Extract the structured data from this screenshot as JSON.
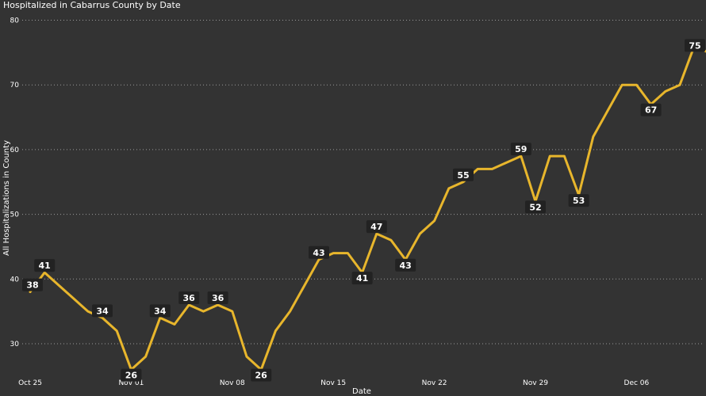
{
  "chart_data": {
    "type": "line",
    "title": "Hospitalized in Cabarrus County by Date",
    "xlabel": "Date",
    "ylabel": "All Hospitalizations in County",
    "ylim": [
      23,
      80
    ],
    "yticks": [
      30,
      40,
      50,
      60,
      70,
      80
    ],
    "grid": true,
    "line_color": "#E8B62C",
    "label_bg": "#222222",
    "x_tick_labels": [
      {
        "date": "2020-10-25",
        "label": "Oct 25"
      },
      {
        "date": "2020-11-01",
        "label": "Nov 01"
      },
      {
        "date": "2020-11-08",
        "label": "Nov 08"
      },
      {
        "date": "2020-11-15",
        "label": "Nov 15"
      },
      {
        "date": "2020-11-22",
        "label": "Nov 22"
      },
      {
        "date": "2020-11-29",
        "label": "Nov 29"
      },
      {
        "date": "2020-12-06",
        "label": "Dec 06"
      }
    ],
    "series": [
      {
        "points": [
          {
            "x": "2020-10-25",
            "y": 38,
            "label": true
          },
          {
            "x": "2020-10-26",
            "y": 41,
            "label": true
          },
          {
            "x": "2020-10-27",
            "y": 39
          },
          {
            "x": "2020-10-28",
            "y": 37
          },
          {
            "x": "2020-10-29",
            "y": 35
          },
          {
            "x": "2020-10-30",
            "y": 34,
            "label": true
          },
          {
            "x": "2020-10-31",
            "y": 32
          },
          {
            "x": "2020-11-01",
            "y": 26,
            "label": true
          },
          {
            "x": "2020-11-02",
            "y": 28
          },
          {
            "x": "2020-11-03",
            "y": 34,
            "label": true
          },
          {
            "x": "2020-11-04",
            "y": 33
          },
          {
            "x": "2020-11-05",
            "y": 36,
            "label": true
          },
          {
            "x": "2020-11-06",
            "y": 35
          },
          {
            "x": "2020-11-07",
            "y": 36,
            "label": true
          },
          {
            "x": "2020-11-08",
            "y": 35
          },
          {
            "x": "2020-11-09",
            "y": 28
          },
          {
            "x": "2020-11-10",
            "y": 26,
            "label": true
          },
          {
            "x": "2020-11-11",
            "y": 32
          },
          {
            "x": "2020-11-12",
            "y": 35
          },
          {
            "x": "2020-11-13",
            "y": 39
          },
          {
            "x": "2020-11-14",
            "y": 43,
            "label": true
          },
          {
            "x": "2020-11-15",
            "y": 44
          },
          {
            "x": "2020-11-16",
            "y": 44
          },
          {
            "x": "2020-11-17",
            "y": 41,
            "label": true
          },
          {
            "x": "2020-11-18",
            "y": 47,
            "label": true
          },
          {
            "x": "2020-11-19",
            "y": 46
          },
          {
            "x": "2020-11-20",
            "y": 43,
            "label": true
          },
          {
            "x": "2020-11-21",
            "y": 47
          },
          {
            "x": "2020-11-22",
            "y": 49
          },
          {
            "x": "2020-11-23",
            "y": 54
          },
          {
            "x": "2020-11-24",
            "y": 55,
            "label": true
          },
          {
            "x": "2020-11-25",
            "y": 57
          },
          {
            "x": "2020-11-26",
            "y": 57
          },
          {
            "x": "2020-11-27",
            "y": 58
          },
          {
            "x": "2020-11-28",
            "y": 59,
            "label": true
          },
          {
            "x": "2020-11-29",
            "y": 52,
            "label": true
          },
          {
            "x": "2020-11-30",
            "y": 59
          },
          {
            "x": "2020-12-01",
            "y": 59
          },
          {
            "x": "2020-12-02",
            "y": 53,
            "label": true
          },
          {
            "x": "2020-12-03",
            "y": 62
          },
          {
            "x": "2020-12-04",
            "y": 66
          },
          {
            "x": "2020-12-05",
            "y": 70
          },
          {
            "x": "2020-12-06",
            "y": 70
          },
          {
            "x": "2020-12-07",
            "y": 67,
            "label": true
          },
          {
            "x": "2020-12-08",
            "y": 69
          },
          {
            "x": "2020-12-09",
            "y": 70
          },
          {
            "x": "2020-12-10",
            "y": 76
          },
          {
            "x": "2020-12-11",
            "y": 75,
            "label": true
          }
        ]
      }
    ]
  }
}
